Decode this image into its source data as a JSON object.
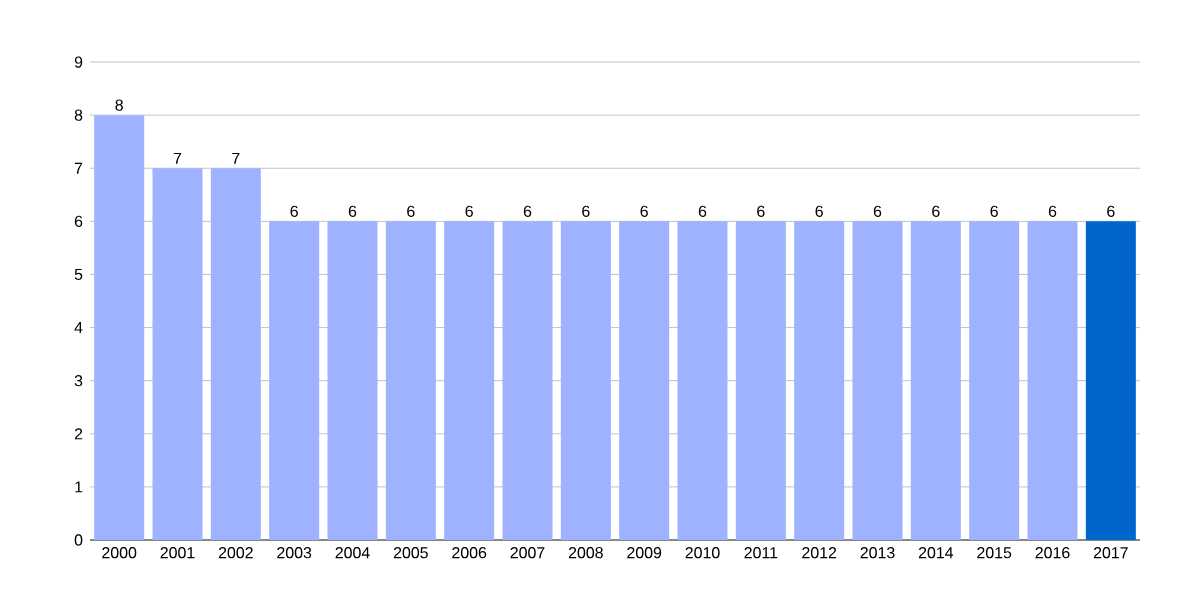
{
  "chart_data": {
    "type": "bar",
    "categories": [
      "2000",
      "2001",
      "2002",
      "2003",
      "2004",
      "2005",
      "2006",
      "2007",
      "2008",
      "2009",
      "2010",
      "2011",
      "2012",
      "2013",
      "2014",
      "2015",
      "2016",
      "2017"
    ],
    "values": [
      8,
      7,
      7,
      6,
      6,
      6,
      6,
      6,
      6,
      6,
      6,
      6,
      6,
      6,
      6,
      6,
      6,
      6
    ],
    "colors": [
      "#9eb2ff",
      "#9eb2ff",
      "#9eb2ff",
      "#9eb2ff",
      "#9eb2ff",
      "#9eb2ff",
      "#9eb2ff",
      "#9eb2ff",
      "#9eb2ff",
      "#9eb2ff",
      "#9eb2ff",
      "#9eb2ff",
      "#9eb2ff",
      "#9eb2ff",
      "#9eb2ff",
      "#9eb2ff",
      "#9eb2ff",
      "#0066cc"
    ],
    "ylim": [
      0,
      9
    ],
    "yticks": [
      0,
      1,
      2,
      3,
      4,
      5,
      6,
      7,
      8,
      9
    ],
    "grid": "y",
    "data_labels": true
  }
}
